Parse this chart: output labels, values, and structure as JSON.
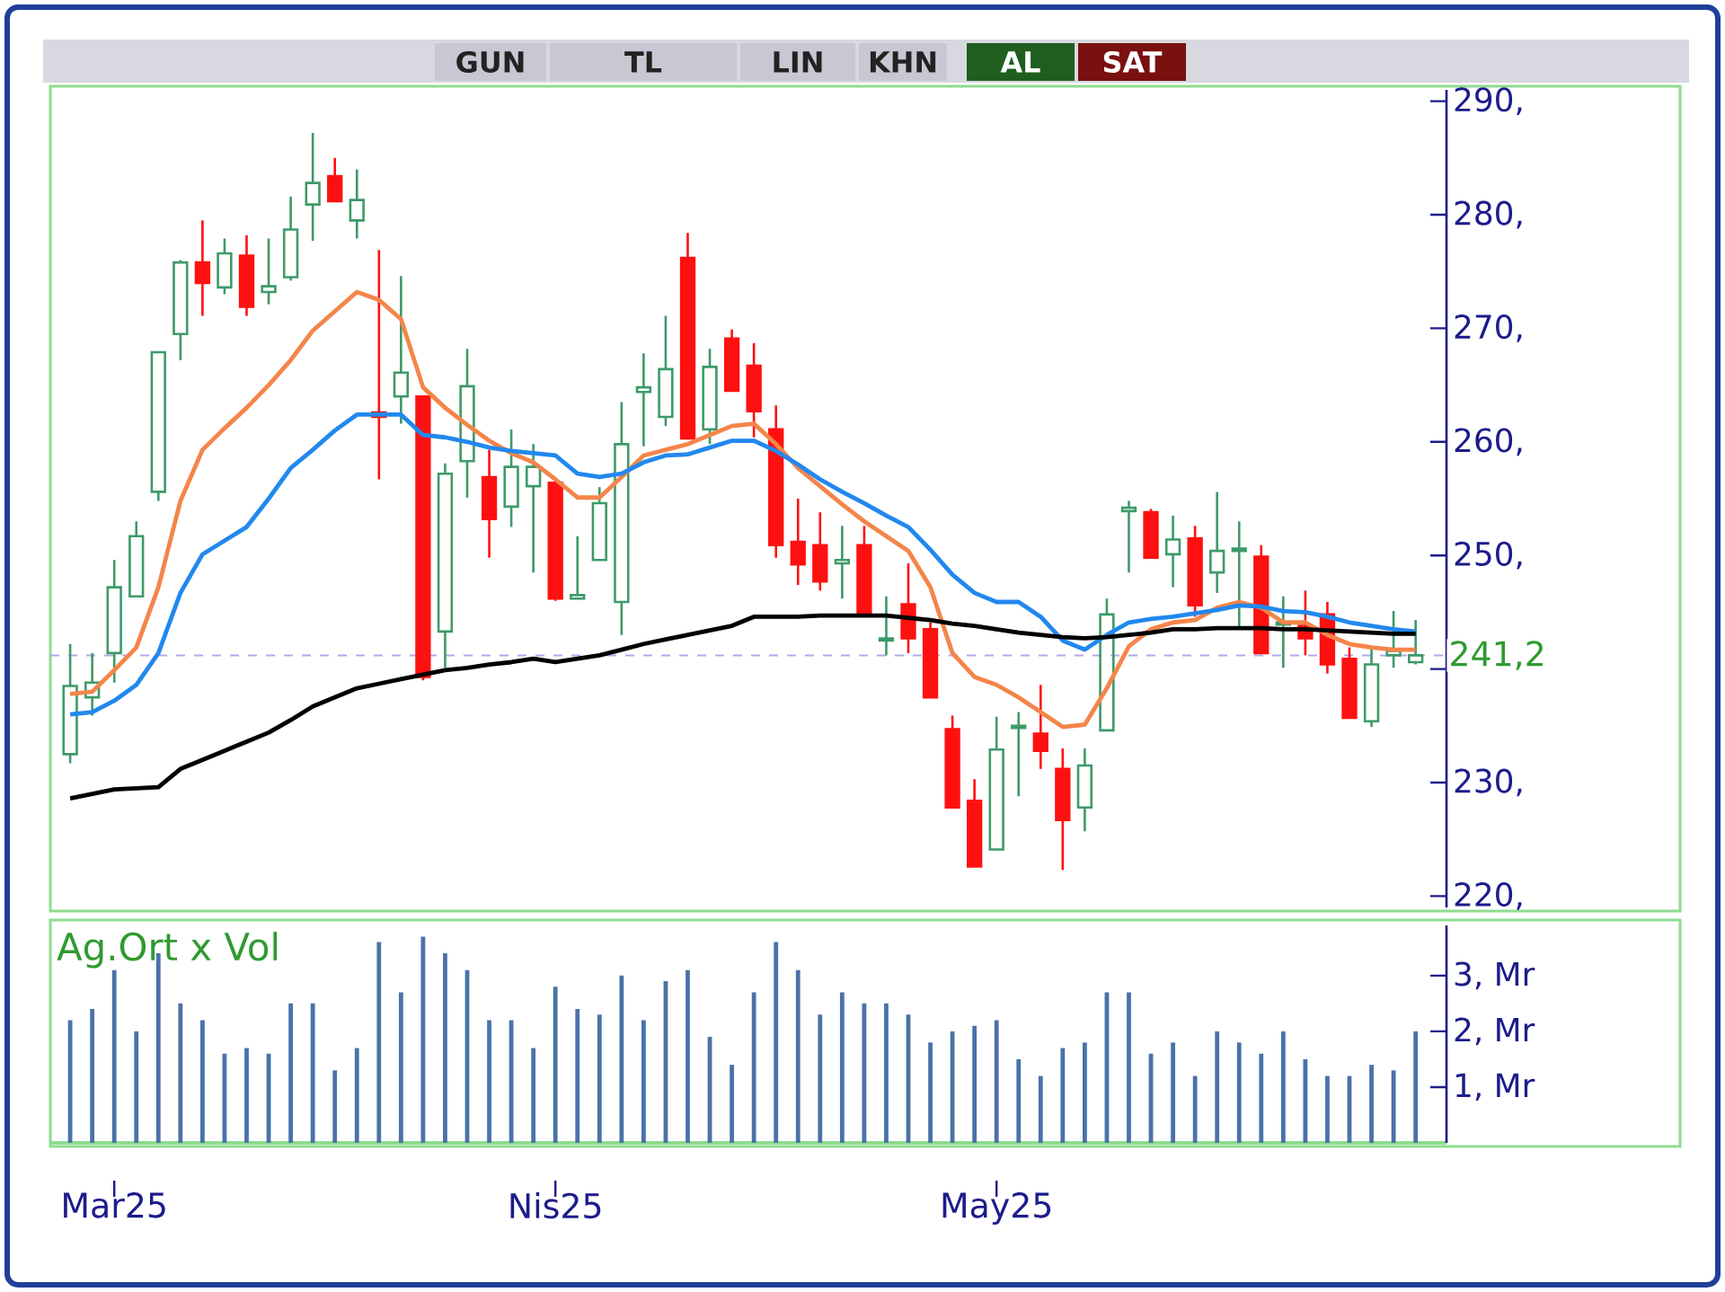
{
  "chart_data": [
    {
      "type": "candlestick",
      "categories": [
        null,
        null,
        null,
        null,
        null,
        null,
        null,
        null,
        null,
        null,
        null,
        null,
        null,
        null,
        null,
        null,
        null,
        null,
        null,
        null,
        null,
        null,
        null,
        null,
        null,
        null,
        null,
        null,
        null,
        null,
        null,
        null,
        null,
        null,
        null,
        null,
        null,
        null,
        null,
        null,
        null,
        null,
        null,
        null,
        null,
        null,
        null,
        null,
        null,
        null,
        null,
        null,
        null,
        null,
        null,
        null,
        null,
        null,
        null,
        null,
        null,
        null
      ],
      "ohlc": [
        [
          232.5,
          242.2,
          231.7,
          238.5
        ],
        [
          237.5,
          241.4,
          235.9,
          238.8
        ],
        [
          241.4,
          249.6,
          238.8,
          247.2
        ],
        [
          246.4,
          253.0,
          246.4,
          251.7
        ],
        [
          255.6,
          268.0,
          254.8,
          267.9
        ],
        [
          269.5,
          276.0,
          267.2,
          275.8
        ],
        [
          275.8,
          279.5,
          271.1,
          274.0
        ],
        [
          273.6,
          277.9,
          273.0,
          276.6
        ],
        [
          276.4,
          278.2,
          271.1,
          271.9
        ],
        [
          273.2,
          277.9,
          272.1,
          273.7
        ],
        [
          274.5,
          281.6,
          274.2,
          278.7
        ],
        [
          280.9,
          287.2,
          277.7,
          282.8
        ],
        [
          283.4,
          285.0,
          281.2,
          281.2
        ],
        [
          279.5,
          284.0,
          277.9,
          281.3
        ],
        [
          262.6,
          276.9,
          256.7,
          262.2
        ],
        [
          264.0,
          274.6,
          261.6,
          266.1
        ],
        [
          264.0,
          264.0,
          239.0,
          239.3
        ],
        [
          243.3,
          258.1,
          240.1,
          257.2
        ],
        [
          258.3,
          268.2,
          255.1,
          264.9
        ],
        [
          256.9,
          259.3,
          249.8,
          253.2
        ],
        [
          254.3,
          261.1,
          252.5,
          257.8
        ],
        [
          256.1,
          259.8,
          248.5,
          257.8
        ],
        [
          256.4,
          256.6,
          246.0,
          246.2
        ],
        [
          246.2,
          251.7,
          246.2,
          246.5
        ],
        [
          249.6,
          256.0,
          249.6,
          254.6
        ],
        [
          245.9,
          263.5,
          243.0,
          259.8
        ],
        [
          264.4,
          267.8,
          259.6,
          264.8
        ],
        [
          262.2,
          271.1,
          261.4,
          266.4
        ],
        [
          276.2,
          278.4,
          260.2,
          260.3
        ],
        [
          261.1,
          268.2,
          259.8,
          266.6
        ],
        [
          269.1,
          269.9,
          264.5,
          264.5
        ],
        [
          266.7,
          268.7,
          260.4,
          262.7
        ],
        [
          261.1,
          263.2,
          249.8,
          250.9
        ],
        [
          251.2,
          255.0,
          247.4,
          249.2
        ],
        [
          250.9,
          253.8,
          246.9,
          247.7
        ],
        [
          249.3,
          252.6,
          246.2,
          249.6
        ],
        [
          250.9,
          252.6,
          244.9,
          244.9
        ],
        [
          242.5,
          246.4,
          241.2,
          242.7
        ],
        [
          245.7,
          249.3,
          241.4,
          242.7
        ],
        [
          243.5,
          244.1,
          237.5,
          237.5
        ],
        [
          234.7,
          235.9,
          227.8,
          227.8
        ],
        [
          228.4,
          230.3,
          222.6,
          222.6
        ],
        [
          224.1,
          235.8,
          224.1,
          232.9
        ],
        [
          234.8,
          236.2,
          228.8,
          235.0
        ],
        [
          234.3,
          238.6,
          231.2,
          232.8
        ],
        [
          231.2,
          233.0,
          222.3,
          226.7
        ],
        [
          227.8,
          233.0,
          225.7,
          231.5
        ],
        [
          234.6,
          246.2,
          234.6,
          244.8
        ],
        [
          253.9,
          254.8,
          248.5,
          254.2
        ],
        [
          253.8,
          254.1,
          249.8,
          249.8
        ],
        [
          250.1,
          253.5,
          247.2,
          251.4
        ],
        [
          251.5,
          252.6,
          244.6,
          245.6
        ],
        [
          248.5,
          255.6,
          246.7,
          250.4
        ],
        [
          250.4,
          253.0,
          243.5,
          250.6
        ],
        [
          249.9,
          250.9,
          241.4,
          241.4
        ],
        [
          243.9,
          246.4,
          240.1,
          244.1
        ],
        [
          243.8,
          246.9,
          241.2,
          242.7
        ],
        [
          244.8,
          245.9,
          239.6,
          240.4
        ],
        [
          240.9,
          241.9,
          235.7,
          235.7
        ],
        [
          235.4,
          241.9,
          234.9,
          240.4
        ],
        [
          241.2,
          245.1,
          240.1,
          241.6
        ],
        [
          240.6,
          244.3,
          240.4,
          241.2
        ]
      ],
      "series": [
        {
          "type": "line",
          "color": "#f4854a",
          "values": [
            237.8,
            238.0,
            239.9,
            241.9,
            247.2,
            254.8,
            259.3,
            261.2,
            263.0,
            265.0,
            267.2,
            269.8,
            271.5,
            273.2,
            272.5,
            270.8,
            264.8,
            263.0,
            261.5,
            260.1,
            259.0,
            258.2,
            256.7,
            255.1,
            255.1,
            256.9,
            258.8,
            259.3,
            259.8,
            260.6,
            261.4,
            261.6,
            259.8,
            257.7,
            256.1,
            254.5,
            253.0,
            251.7,
            250.4,
            247.2,
            241.4,
            239.3,
            238.6,
            237.5,
            236.2,
            234.9,
            235.1,
            238.3,
            242.0,
            243.5,
            244.1,
            244.3,
            245.4,
            245.9,
            245.4,
            244.1,
            244.1,
            243.0,
            242.2,
            241.9,
            241.7,
            241.7
          ]
        },
        {
          "type": "line",
          "color": "#2288ee",
          "values": [
            236.0,
            236.2,
            237.2,
            238.6,
            241.4,
            246.7,
            250.1,
            251.3,
            252.5,
            255.0,
            257.7,
            259.3,
            261.0,
            262.4,
            262.4,
            262.4,
            260.6,
            260.4,
            260.0,
            259.5,
            259.2,
            259.0,
            258.8,
            257.2,
            256.9,
            257.2,
            258.2,
            258.8,
            258.9,
            259.5,
            260.1,
            260.1,
            259.2,
            258.0,
            256.7,
            255.6,
            254.6,
            253.5,
            252.5,
            250.5,
            248.3,
            246.7,
            245.9,
            245.9,
            244.6,
            242.5,
            241.7,
            243.0,
            244.1,
            244.4,
            244.6,
            244.9,
            245.2,
            245.6,
            245.5,
            245.1,
            245.0,
            244.6,
            244.1,
            243.8,
            243.5,
            243.3
          ]
        },
        {
          "type": "line",
          "color": "#000000",
          "values": [
            228.6,
            229.0,
            229.4,
            229.5,
            229.6,
            231.2,
            232.0,
            232.8,
            233.6,
            234.4,
            235.5,
            236.7,
            237.5,
            238.3,
            238.7,
            239.1,
            239.5,
            239.9,
            240.1,
            240.4,
            240.6,
            240.9,
            240.6,
            240.9,
            241.2,
            241.7,
            242.2,
            242.6,
            243.0,
            243.4,
            243.8,
            244.6,
            244.6,
            244.6,
            244.7,
            244.7,
            244.7,
            244.7,
            244.5,
            244.3,
            244.0,
            243.8,
            243.5,
            243.2,
            243.0,
            242.8,
            242.7,
            242.8,
            243.0,
            243.2,
            243.5,
            243.5,
            243.6,
            243.6,
            243.6,
            243.5,
            243.5,
            243.4,
            243.3,
            243.2,
            243.1,
            243.1
          ]
        }
      ],
      "ylim": [
        219,
        291
      ],
      "yticks": [
        {
          "value": 220,
          "label": "220,"
        },
        {
          "value": 230,
          "label": "230,"
        },
        {
          "value": 240,
          "label": null
        },
        {
          "value": 250,
          "label": "250,"
        },
        {
          "value": 260,
          "label": "260,"
        },
        {
          "value": 270,
          "label": "270,"
        },
        {
          "value": 280,
          "label": "280,"
        },
        {
          "value": 290,
          "label": "290,"
        }
      ],
      "ref_lines": [
        {
          "axis": "y",
          "value": 241.2,
          "label": "241,2",
          "color": "#b4a8ee",
          "line_style": "dashed"
        }
      ],
      "tick_labels": "y",
      "annotations": [
        "GUN",
        "TL",
        "LIN",
        "KHN",
        "AL",
        "SAT"
      ]
    },
    {
      "type": "bar",
      "title": "Ag.Ort x Vol",
      "color": "#4a72a8",
      "categories": [
        null,
        null,
        "Mar25",
        null,
        null,
        null,
        null,
        null,
        null,
        null,
        null,
        null,
        null,
        null,
        null,
        null,
        null,
        null,
        null,
        null,
        null,
        null,
        "Nis25",
        null,
        null,
        null,
        null,
        null,
        null,
        null,
        null,
        null,
        null,
        null,
        null,
        null,
        null,
        null,
        null,
        null,
        null,
        null,
        "May25",
        null,
        null,
        null,
        null,
        null,
        null,
        null,
        null,
        null,
        null,
        null,
        null,
        null,
        null,
        null,
        null,
        null,
        null,
        null
      ],
      "values": [
        2.2,
        2.4,
        3.1,
        2.0,
        3.4,
        2.5,
        2.2,
        1.6,
        1.7,
        1.6,
        2.5,
        2.5,
        1.3,
        1.7,
        3.6,
        2.7,
        3.7,
        3.4,
        3.1,
        2.2,
        2.2,
        1.7,
        2.8,
        2.4,
        2.3,
        3.0,
        2.2,
        2.9,
        3.1,
        1.9,
        1.4,
        2.7,
        3.6,
        3.1,
        2.3,
        2.7,
        2.5,
        2.5,
        2.3,
        1.8,
        2.0,
        2.1,
        2.2,
        1.5,
        1.2,
        1.7,
        1.8,
        2.7,
        2.7,
        1.6,
        1.8,
        1.2,
        2.0,
        1.8,
        1.6,
        2.0,
        1.5,
        1.2,
        1.2,
        1.4,
        1.3,
        2.0
      ],
      "ylim": [
        0,
        3.9
      ],
      "yticks": [
        {
          "value": 1,
          "label": "1, Mr"
        },
        {
          "value": 2,
          "label": "2, Mr"
        },
        {
          "value": 3,
          "label": "3, Mr"
        }
      ]
    }
  ]
}
